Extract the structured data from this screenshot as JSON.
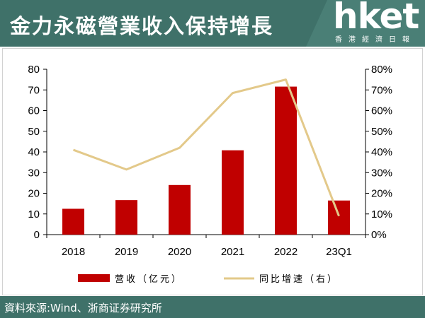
{
  "header": {
    "title": "金力永磁營業收入保持增長",
    "logo": "hket",
    "logo_sub": "香港經濟日報"
  },
  "footer": {
    "source": "資料來源:Wind、浙商证券研究所"
  },
  "colors": {
    "header_bg": "#3f7169",
    "bar": "#c00000",
    "line": "#e3c98a"
  },
  "chart_data": {
    "type": "bar",
    "categories": [
      "2018",
      "2019",
      "2020",
      "2021",
      "2022",
      "23Q1"
    ],
    "series": [
      {
        "name": "营收（亿元）",
        "type": "bar",
        "axis": "left",
        "values": [
          12.5,
          16.7,
          24.0,
          40.8,
          71.6,
          16.5
        ]
      },
      {
        "name": "同比增速（右）",
        "type": "line",
        "axis": "right",
        "values": [
          41.0,
          31.5,
          42.0,
          68.5,
          75.0,
          9.0
        ]
      }
    ],
    "ylim": [
      0,
      80
    ],
    "yticks": [
      "0",
      "10",
      "20",
      "30",
      "40",
      "50",
      "60",
      "70",
      "80"
    ],
    "y2lim": [
      0,
      80
    ],
    "y2ticks": [
      "0%",
      "10%",
      "20%",
      "30%",
      "40%",
      "50%",
      "60%",
      "70%",
      "80%"
    ],
    "grid": false,
    "legend_position": "bottom"
  }
}
